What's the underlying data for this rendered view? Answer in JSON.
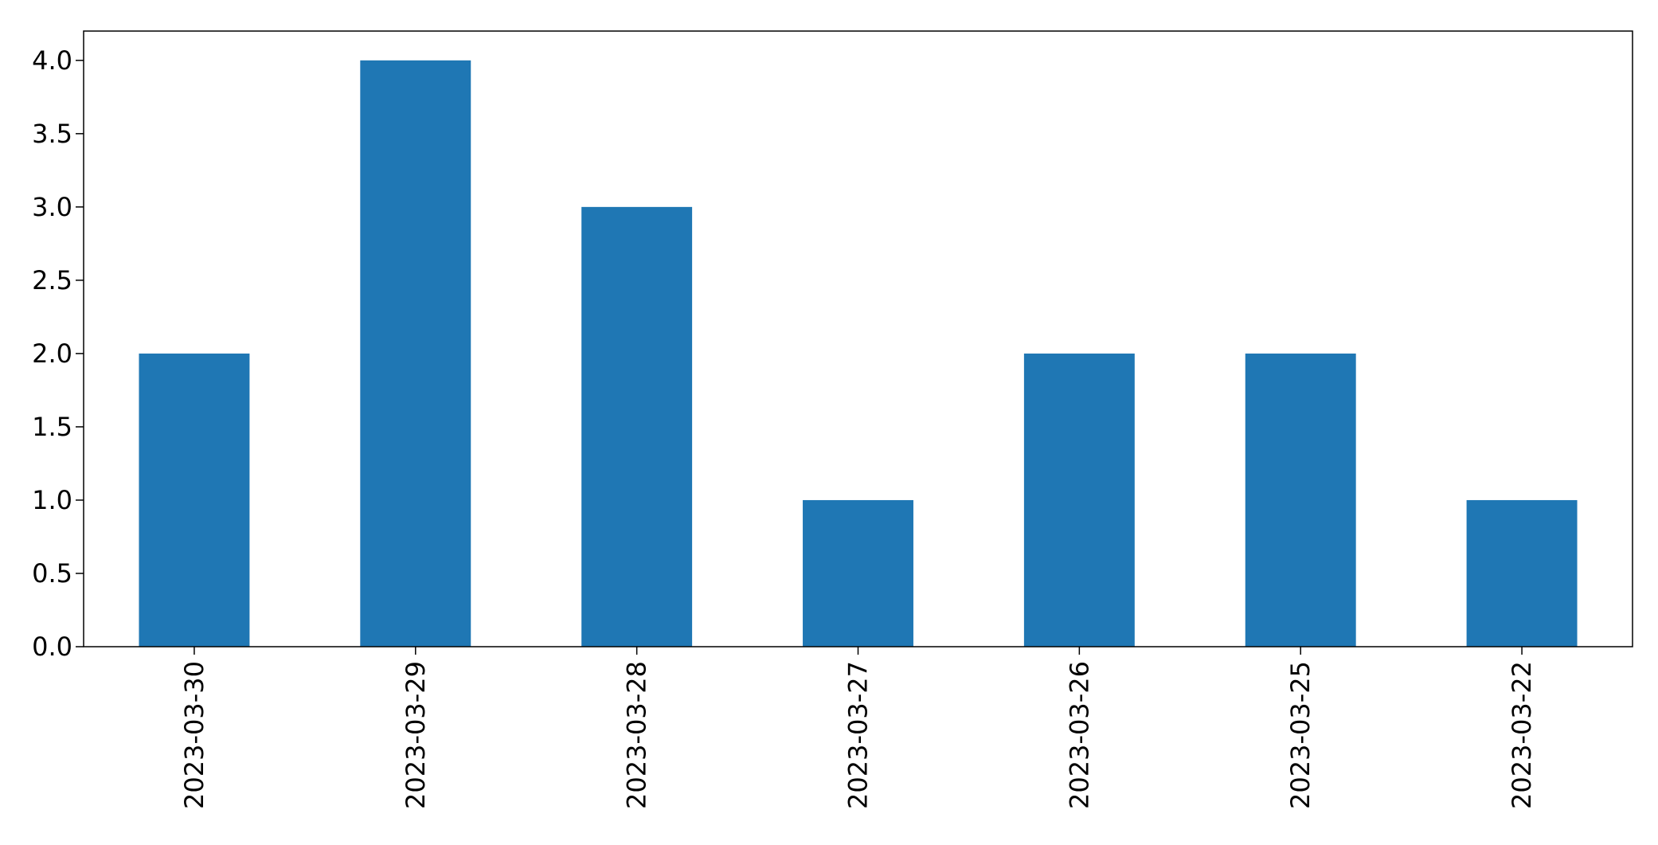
{
  "chart_data": {
    "type": "bar",
    "title": "",
    "xlabel": "",
    "ylabel": "",
    "categories": [
      "2023-03-30",
      "2023-03-29",
      "2023-03-28",
      "2023-03-27",
      "2023-03-26",
      "2023-03-25",
      "2023-03-22"
    ],
    "values": [
      2,
      4,
      3,
      1,
      2,
      2,
      1
    ],
    "ylim": [
      0,
      4.2
    ],
    "yticks": [
      "0.0",
      "0.5",
      "1.0",
      "1.5",
      "2.0",
      "2.5",
      "3.0",
      "3.5",
      "4.0"
    ],
    "grid": false,
    "legend": "none",
    "bar_color": "#1f77b4",
    "x_tick_rotation": "vertical"
  }
}
